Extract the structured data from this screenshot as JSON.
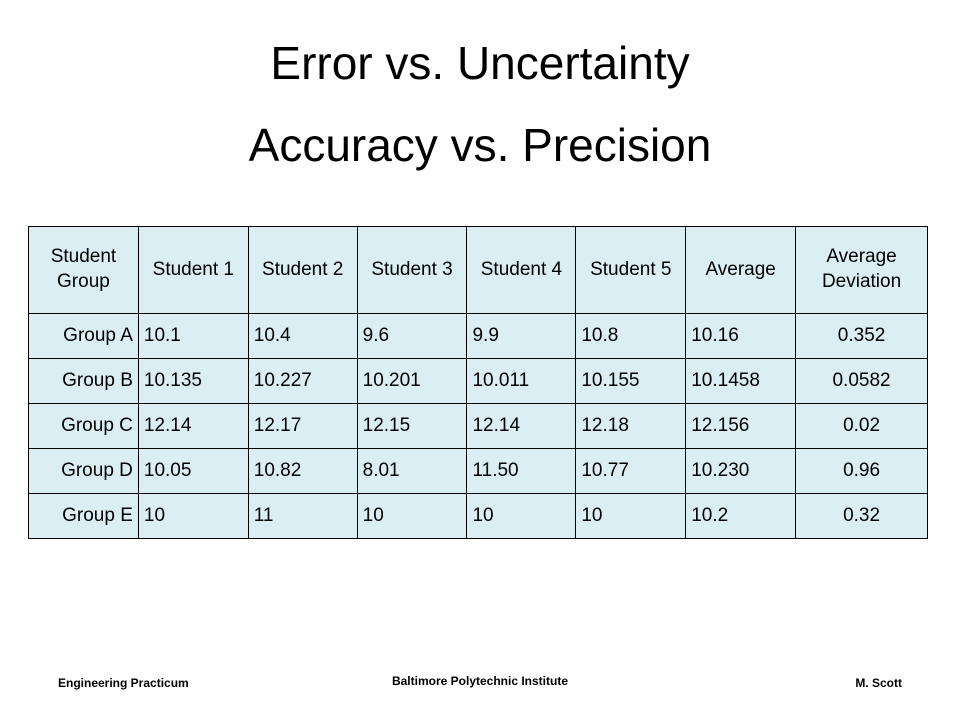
{
  "header": {
    "title": "Error vs. Uncertainty",
    "subtitle": "Accuracy vs. Precision"
  },
  "table": {
    "columns": [
      "Student Group",
      "Student 1",
      "Student 2",
      "Student 3",
      "Student 4",
      "Student 5",
      "Average",
      "Average Deviation"
    ],
    "rows": [
      [
        "Group A",
        "10.1",
        "10.4",
        "9.6",
        "9.9",
        "10.8",
        "10.16",
        "0.352"
      ],
      [
        "Group B",
        "10.135",
        "10.227",
        "10.201",
        "10.011",
        "10.155",
        "10.1458",
        "0.0582"
      ],
      [
        "Group C",
        "12.14",
        "12.17",
        "12.15",
        "12.14",
        "12.18",
        "12.156",
        "0.02"
      ],
      [
        "Group D",
        "10.05",
        "10.82",
        "8.01",
        "11.50",
        "10.77",
        "10.230",
        "0.96"
      ],
      [
        "Group E",
        "10",
        "11",
        "10",
        "10",
        "10",
        "10.2",
        "0.32"
      ]
    ]
  },
  "footer": {
    "left": "Engineering Practicum",
    "center": "Baltimore Polytechnic Institute",
    "right": "M. Scott"
  }
}
